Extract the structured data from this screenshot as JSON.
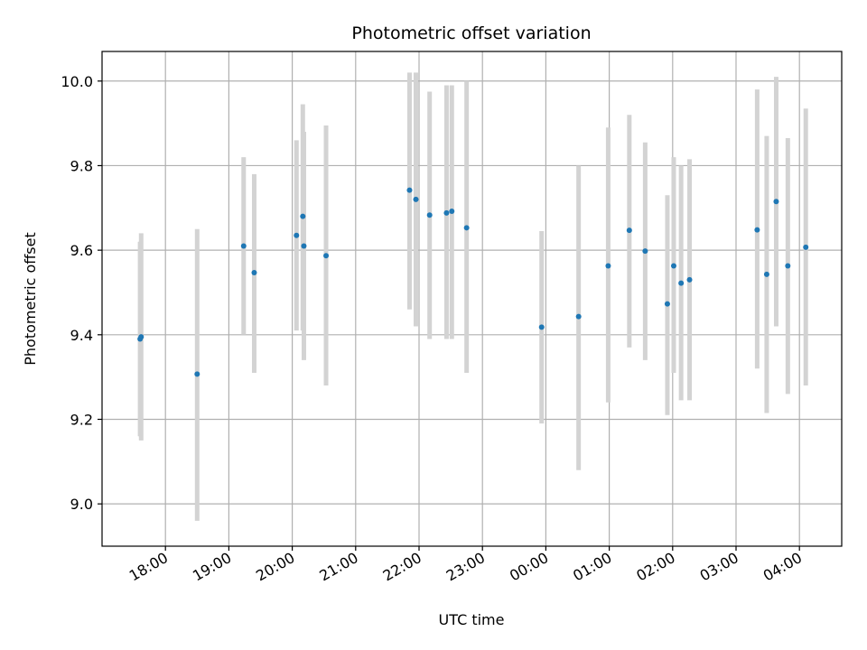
{
  "chart_data": {
    "type": "scatter",
    "title": "Photometric offset variation",
    "xlabel": "UTC time",
    "ylabel": "Photometric offset",
    "x_axis": {
      "kind": "time",
      "start": "17:00",
      "end": "04:40",
      "ticks": [
        "18:00",
        "19:00",
        "20:00",
        "21:00",
        "22:00",
        "23:00",
        "00:00",
        "01:00",
        "02:00",
        "03:00",
        "04:00"
      ]
    },
    "ylim": [
      8.9,
      10.07
    ],
    "y_ticks": [
      "9.0",
      "9.2",
      "9.4",
      "9.6",
      "9.8",
      "10.0"
    ],
    "grid": true,
    "colors": {
      "point": "#1f77b4",
      "error_bar": "#d3d3d3",
      "grid": "#b0b0b0"
    },
    "points": [
      {
        "t": "17:36",
        "y": 9.39,
        "lo": 9.16,
        "hi": 9.62
      },
      {
        "t": "17:37",
        "y": 9.395,
        "lo": 9.15,
        "hi": 9.64
      },
      {
        "t": "18:30",
        "y": 9.307,
        "lo": 8.96,
        "hi": 9.65
      },
      {
        "t": "19:14",
        "y": 9.61,
        "lo": 9.4,
        "hi": 9.82
      },
      {
        "t": "19:24",
        "y": 9.547,
        "lo": 9.31,
        "hi": 9.78
      },
      {
        "t": "20:04",
        "y": 9.635,
        "lo": 9.41,
        "hi": 9.86
      },
      {
        "t": "20:10",
        "y": 9.68,
        "lo": 9.41,
        "hi": 9.945
      },
      {
        "t": "20:11",
        "y": 9.61,
        "lo": 9.34,
        "hi": 9.88
      },
      {
        "t": "20:32",
        "y": 9.587,
        "lo": 9.28,
        "hi": 9.895
      },
      {
        "t": "21:51",
        "y": 9.742,
        "lo": 9.46,
        "hi": 10.02
      },
      {
        "t": "21:57",
        "y": 9.72,
        "lo": 9.42,
        "hi": 10.02
      },
      {
        "t": "22:10",
        "y": 9.683,
        "lo": 9.39,
        "hi": 9.975
      },
      {
        "t": "22:26",
        "y": 9.688,
        "lo": 9.39,
        "hi": 9.99
      },
      {
        "t": "22:31",
        "y": 9.692,
        "lo": 9.39,
        "hi": 9.99
      },
      {
        "t": "22:45",
        "y": 9.653,
        "lo": 9.31,
        "hi": 10.0
      },
      {
        "t": "23:56",
        "y": 9.418,
        "lo": 9.19,
        "hi": 9.645
      },
      {
        "t": "00:31",
        "y": 9.443,
        "lo": 9.08,
        "hi": 9.8
      },
      {
        "t": "00:59",
        "y": 9.563,
        "lo": 9.24,
        "hi": 9.89
      },
      {
        "t": "01:19",
        "y": 9.647,
        "lo": 9.37,
        "hi": 9.92
      },
      {
        "t": "01:34",
        "y": 9.598,
        "lo": 9.34,
        "hi": 9.855
      },
      {
        "t": "01:55",
        "y": 9.473,
        "lo": 9.21,
        "hi": 9.73
      },
      {
        "t": "02:01",
        "y": 9.563,
        "lo": 9.31,
        "hi": 9.82
      },
      {
        "t": "02:08",
        "y": 9.522,
        "lo": 9.245,
        "hi": 9.8
      },
      {
        "t": "02:16",
        "y": 9.53,
        "lo": 9.245,
        "hi": 9.815
      },
      {
        "t": "03:20",
        "y": 9.648,
        "lo": 9.32,
        "hi": 9.98
      },
      {
        "t": "03:29",
        "y": 9.543,
        "lo": 9.215,
        "hi": 9.87
      },
      {
        "t": "03:38",
        "y": 9.715,
        "lo": 9.42,
        "hi": 10.01
      },
      {
        "t": "03:49",
        "y": 9.563,
        "lo": 9.26,
        "hi": 9.865
      },
      {
        "t": "04:06",
        "y": 9.607,
        "lo": 9.28,
        "hi": 9.935
      }
    ]
  }
}
